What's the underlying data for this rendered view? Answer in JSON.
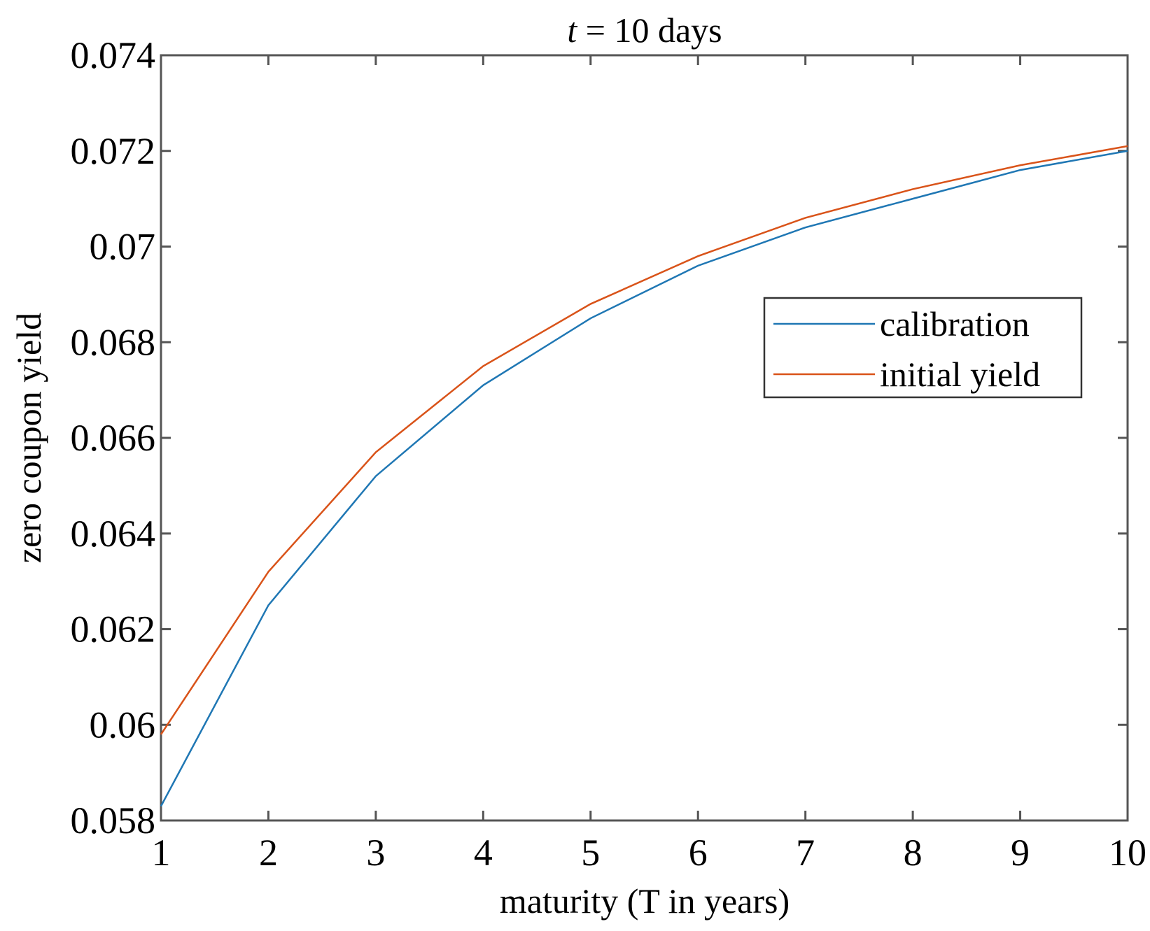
{
  "chart_data": {
    "type": "line",
    "title_italic": "t",
    "title_rest": " = 10 days",
    "xlabel": "maturity (T in years)",
    "ylabel": "zero coupon yield",
    "xlim": [
      1,
      10
    ],
    "ylim": [
      0.058,
      0.074
    ],
    "xticks": [
      "1",
      "2",
      "3",
      "4",
      "5",
      "6",
      "7",
      "8",
      "9",
      "10"
    ],
    "yticks": [
      "0.058",
      "0.06",
      "0.062",
      "0.064",
      "0.066",
      "0.068",
      "0.07",
      "0.072",
      "0.074"
    ],
    "grid": false,
    "legend_position": "right, upper-middle",
    "x": [
      1,
      2,
      3,
      4,
      5,
      6,
      7,
      8,
      9,
      10
    ],
    "series": [
      {
        "name": "calibration",
        "color": "#1f77b4",
        "values": [
          0.0583,
          0.0625,
          0.0652,
          0.0671,
          0.0685,
          0.0696,
          0.0704,
          0.071,
          0.0716,
          0.072
        ]
      },
      {
        "name": "initial yield",
        "color": "#d95319",
        "values": [
          0.0598,
          0.0632,
          0.0657,
          0.0675,
          0.0688,
          0.0698,
          0.0706,
          0.0712,
          0.0717,
          0.0721
        ]
      }
    ]
  }
}
